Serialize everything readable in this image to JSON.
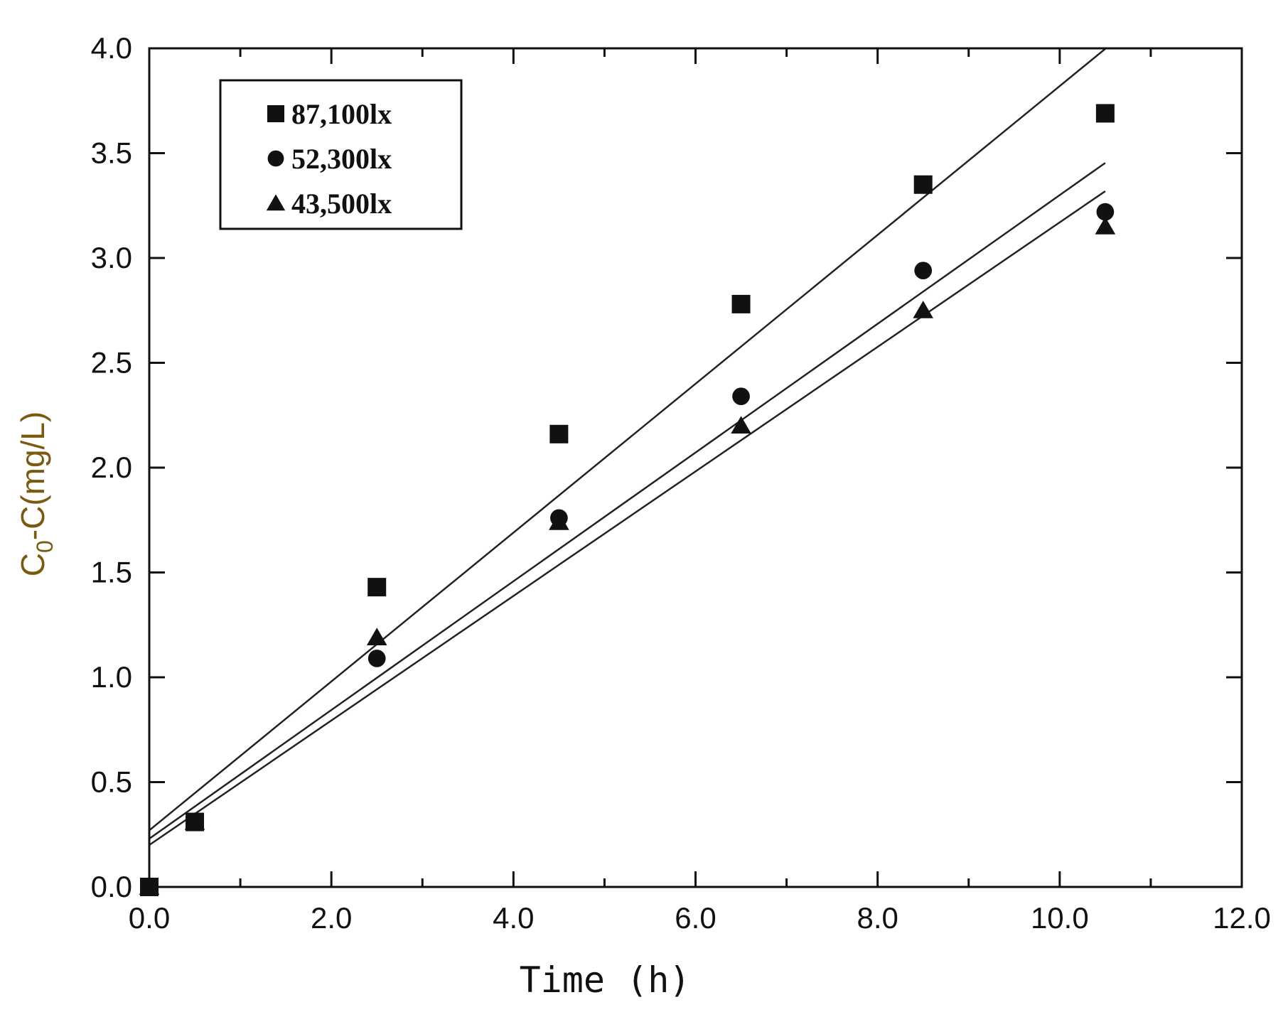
{
  "chart_data": {
    "type": "scatter",
    "title": "",
    "xlabel": "Time (h)",
    "ylabel": "C0-C(mg/L)",
    "ylabel_main": "C",
    "ylabel_sub": "0",
    "ylabel_rest": "-C(mg/L)",
    "xlim": [
      0,
      12
    ],
    "ylim": [
      0,
      4
    ],
    "xticks": [
      0,
      2,
      4,
      6,
      8,
      10,
      12
    ],
    "xtick_labels": [
      "0.0",
      "2.0",
      "4.0",
      "6.0",
      "8.0",
      "10.0",
      "12.0"
    ],
    "yticks": [
      0,
      0.5,
      1,
      1.5,
      2,
      2.5,
      3,
      3.5,
      4
    ],
    "ytick_labels": [
      "0.0",
      "0.5",
      "1.0",
      "1.5",
      "2.0",
      "2.5",
      "3.0",
      "3.5",
      "4.0"
    ],
    "grid": false,
    "legend_position": "top-left",
    "series": [
      {
        "name": "87,100lx",
        "marker": "square",
        "x": [
          0,
          0.5,
          2.5,
          4.5,
          6.5,
          8.5,
          10.5
        ],
        "y": [
          0,
          0.31,
          1.43,
          2.16,
          2.78,
          3.35,
          3.69
        ],
        "fit": {
          "intercept": 0.27,
          "slope": 0.355,
          "x_end": 10.5
        }
      },
      {
        "name": "52,300lx",
        "marker": "circle",
        "x": [
          0,
          0.5,
          2.5,
          4.5,
          6.5,
          8.5,
          10.5
        ],
        "y": [
          0,
          0.31,
          1.09,
          1.76,
          2.34,
          2.94,
          3.22
        ],
        "fit": {
          "intercept": 0.23,
          "slope": 0.307,
          "x_end": 10.5
        }
      },
      {
        "name": "43,500lx",
        "marker": "triangle",
        "x": [
          0,
          0.5,
          2.5,
          4.5,
          6.5,
          8.5,
          10.5
        ],
        "y": [
          0,
          0.31,
          1.19,
          1.74,
          2.2,
          2.75,
          3.15
        ],
        "fit": {
          "intercept": 0.2,
          "slope": 0.297,
          "x_end": 10.5
        }
      }
    ]
  }
}
